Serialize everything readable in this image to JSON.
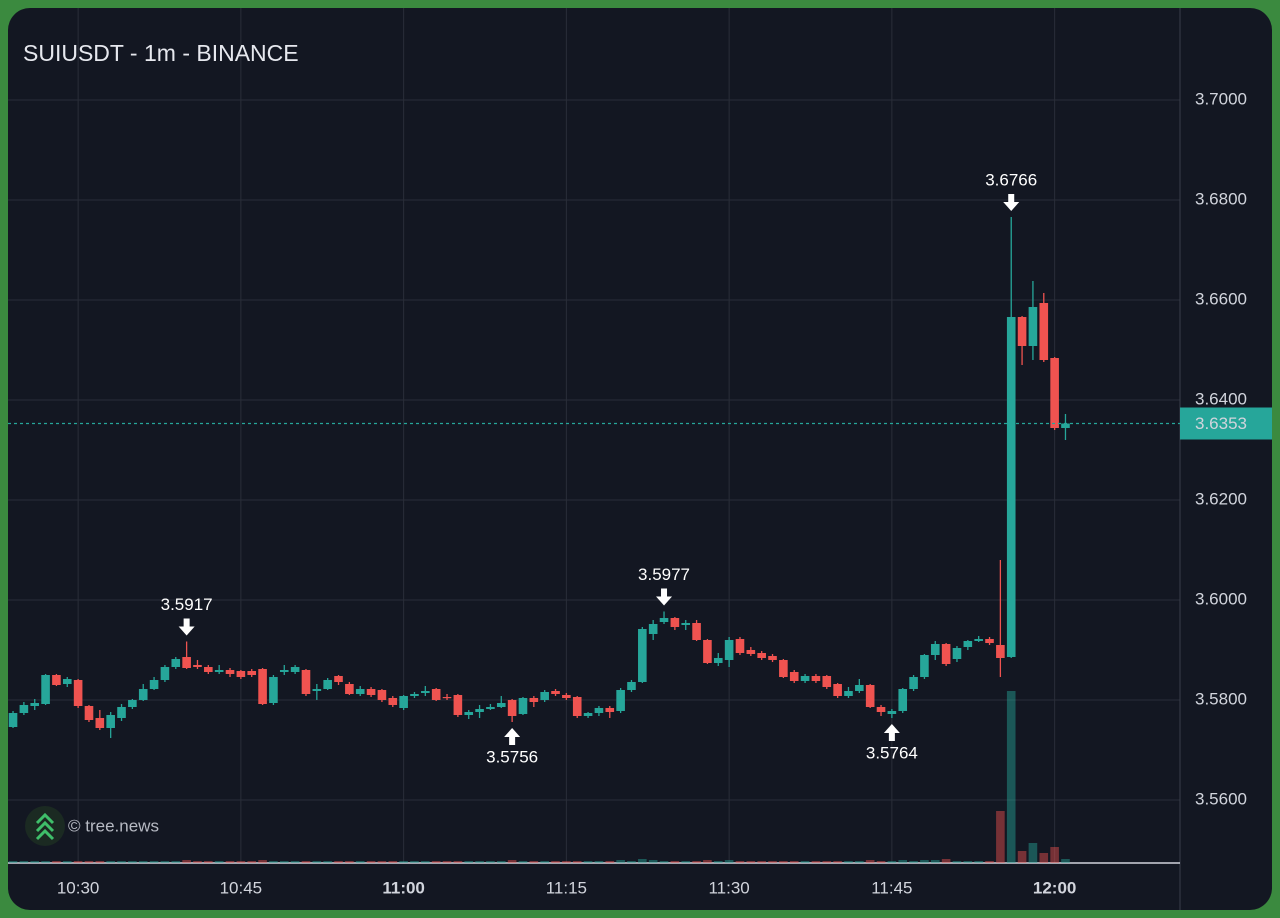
{
  "chart_data": {
    "type": "candlestick",
    "title": "SUIUSDT - 1m - BINANCE",
    "watermark": "© tree.news",
    "categories": [
      "10:24",
      "10:25",
      "10:26",
      "10:27",
      "10:28",
      "10:29",
      "10:30",
      "10:31",
      "10:32",
      "10:33",
      "10:34",
      "10:35",
      "10:36",
      "10:37",
      "10:38",
      "10:39",
      "10:40",
      "10:41",
      "10:42",
      "10:43",
      "10:44",
      "10:45",
      "10:46",
      "10:47",
      "10:48",
      "10:49",
      "10:50",
      "10:51",
      "10:52",
      "10:53",
      "10:54",
      "10:55",
      "10:56",
      "10:57",
      "10:58",
      "10:59",
      "11:00",
      "11:01",
      "11:02",
      "11:03",
      "11:04",
      "11:05",
      "11:06",
      "11:07",
      "11:08",
      "11:09",
      "11:10",
      "11:11",
      "11:12",
      "11:13",
      "11:14",
      "11:15",
      "11:16",
      "11:17",
      "11:18",
      "11:19",
      "11:20",
      "11:21",
      "11:22",
      "11:23",
      "11:24",
      "11:25",
      "11:26",
      "11:27",
      "11:28",
      "11:29",
      "11:30",
      "11:31",
      "11:32",
      "11:33",
      "11:34",
      "11:35",
      "11:36",
      "11:37",
      "11:38",
      "11:39",
      "11:40",
      "11:41",
      "11:42",
      "11:43",
      "11:44",
      "11:45",
      "11:46",
      "11:47",
      "11:48",
      "11:49",
      "11:50",
      "11:51",
      "11:52",
      "11:53",
      "11:54",
      "11:55",
      "11:56",
      "11:57",
      "11:58",
      "11:59",
      "12:00",
      "12:01"
    ],
    "open": [
      3.5746,
      3.5774,
      3.5788,
      3.5792,
      3.585,
      3.5832,
      3.584,
      3.5788,
      3.5764,
      3.5744,
      3.5764,
      3.5786,
      3.58,
      3.5822,
      3.584,
      3.5866,
      3.5886,
      3.587,
      3.5866,
      3.5856,
      3.586,
      3.5858,
      3.5858,
      3.5862,
      3.5794,
      3.5856,
      3.5856,
      3.586,
      3.5818,
      3.5822,
      3.5848,
      3.5832,
      3.5812,
      3.5822,
      3.582,
      3.5804,
      3.5784,
      3.5808,
      3.5814,
      3.5822,
      3.5806,
      3.581,
      3.577,
      3.5776,
      3.5782,
      3.5786,
      3.58,
      3.5772,
      3.5804,
      3.58,
      3.5818,
      3.581,
      3.5806,
      3.5768,
      3.5774,
      3.5784,
      3.5778,
      3.582,
      3.5836,
      3.5932,
      3.5956,
      3.5964,
      3.595,
      3.5954,
      3.592,
      3.5874,
      3.588,
      3.5922,
      3.59,
      3.5894,
      3.5888,
      3.588,
      3.5856,
      3.5838,
      3.5848,
      3.5848,
      3.5832,
      3.5808,
      3.5818,
      3.583,
      3.5786,
      3.5772,
      3.5778,
      3.5822,
      3.5846,
      3.589,
      3.5912,
      3.5882,
      3.5906,
      3.5918,
      3.5922,
      3.591,
      3.5886,
      3.6566,
      3.6508,
      3.6594,
      3.6484,
      3.6344
    ],
    "high": [
      3.5778,
      3.5796,
      3.5802,
      3.5852,
      3.5852,
      3.5846,
      3.5842,
      3.579,
      3.578,
      3.5776,
      3.5792,
      3.5802,
      3.5832,
      3.5846,
      3.587,
      3.5886,
      3.5917,
      3.588,
      3.587,
      3.587,
      3.5864,
      3.586,
      3.5862,
      3.5864,
      3.585,
      3.587,
      3.587,
      3.5862,
      3.5832,
      3.5844,
      3.585,
      3.5836,
      3.5828,
      3.5826,
      3.5822,
      3.5808,
      3.581,
      3.5816,
      3.5828,
      3.5824,
      3.5812,
      3.5812,
      3.578,
      3.579,
      3.5792,
      3.5808,
      3.5802,
      3.5806,
      3.5808,
      3.582,
      3.5822,
      3.5814,
      3.5808,
      3.5776,
      3.5788,
      3.5788,
      3.5824,
      3.584,
      3.5946,
      3.596,
      3.5977,
      3.5966,
      3.596,
      3.596,
      3.5922,
      3.5894,
      3.5926,
      3.5926,
      3.5906,
      3.5898,
      3.5892,
      3.5882,
      3.586,
      3.5852,
      3.5852,
      3.585,
      3.5834,
      3.5826,
      3.5842,
      3.5832,
      3.579,
      3.5782,
      3.5824,
      3.585,
      3.5892,
      3.5918,
      3.5914,
      3.5908,
      3.592,
      3.5928,
      3.5926,
      3.608,
      3.6766,
      3.6568,
      3.6638,
      3.6614,
      3.6486,
      3.6372
    ],
    "low": [
      3.5744,
      3.577,
      3.578,
      3.579,
      3.5828,
      3.5826,
      3.5784,
      3.5756,
      3.574,
      3.5724,
      3.5758,
      3.5782,
      3.5798,
      3.582,
      3.5836,
      3.5862,
      3.5862,
      3.5862,
      3.5852,
      3.5852,
      3.5846,
      3.5842,
      3.5846,
      3.579,
      3.579,
      3.585,
      3.5852,
      3.5808,
      3.58,
      3.582,
      3.583,
      3.581,
      3.5808,
      3.5806,
      3.5796,
      3.5786,
      3.578,
      3.5804,
      3.5808,
      3.5798,
      3.58,
      3.5766,
      3.5762,
      3.5764,
      3.578,
      3.5784,
      3.5756,
      3.577,
      3.5786,
      3.5796,
      3.5808,
      3.58,
      3.5764,
      3.5764,
      3.5768,
      3.5764,
      3.5774,
      3.5816,
      3.5834,
      3.592,
      3.5952,
      3.594,
      3.594,
      3.5918,
      3.5872,
      3.5868,
      3.5866,
      3.589,
      3.5888,
      3.588,
      3.5876,
      3.5844,
      3.5834,
      3.5834,
      3.5834,
      3.5822,
      3.5804,
      3.5804,
      3.5814,
      3.5784,
      3.5768,
      3.5764,
      3.5774,
      3.5818,
      3.5842,
      3.588,
      3.5868,
      3.5876,
      3.59,
      3.5916,
      3.591,
      3.5846,
      3.5884,
      3.647,
      3.648,
      3.6476,
      3.634,
      3.632
    ],
    "close": [
      3.5774,
      3.579,
      3.5794,
      3.585,
      3.583,
      3.5842,
      3.5788,
      3.576,
      3.5744,
      3.577,
      3.5786,
      3.58,
      3.5822,
      3.584,
      3.5866,
      3.5882,
      3.5864,
      3.5866,
      3.5856,
      3.586,
      3.5852,
      3.5846,
      3.585,
      3.5792,
      3.5846,
      3.586,
      3.5866,
      3.5812,
      3.5822,
      3.584,
      3.5836,
      3.5812,
      3.5822,
      3.581,
      3.58,
      3.579,
      3.5808,
      3.5812,
      3.5818,
      3.58,
      3.5804,
      3.577,
      3.5776,
      3.5782,
      3.5786,
      3.5794,
      3.5768,
      3.5804,
      3.5796,
      3.5816,
      3.5812,
      3.5804,
      3.5768,
      3.5774,
      3.5784,
      3.5776,
      3.582,
      3.5836,
      3.5942,
      3.5952,
      3.5964,
      3.5946,
      3.5954,
      3.592,
      3.5874,
      3.5884,
      3.592,
      3.5894,
      3.5892,
      3.5884,
      3.588,
      3.5846,
      3.5838,
      3.5848,
      3.5838,
      3.5826,
      3.5808,
      3.5818,
      3.583,
      3.5786,
      3.5776,
      3.5778,
      3.5822,
      3.5846,
      3.589,
      3.5912,
      3.5872,
      3.5904,
      3.5918,
      3.5922,
      3.5914,
      3.5884,
      3.6566,
      3.6508,
      3.6586,
      3.648,
      3.6344,
      3.6353
    ],
    "volume": [
      2,
      2,
      2,
      2,
      2,
      2,
      2,
      2,
      2,
      2,
      2,
      2,
      2,
      2,
      2,
      2,
      3,
      2,
      2,
      2,
      2,
      2,
      2,
      3,
      2,
      2,
      2,
      2,
      2,
      2,
      2,
      2,
      2,
      2,
      2,
      2,
      2,
      2,
      2,
      2,
      2,
      2,
      2,
      2,
      2,
      2,
      3,
      2,
      2,
      2,
      2,
      2,
      2,
      2,
      2,
      2,
      3,
      2,
      4,
      3,
      2,
      2,
      2,
      2,
      3,
      2,
      3,
      2,
      2,
      2,
      2,
      2,
      2,
      2,
      2,
      2,
      2,
      2,
      2,
      3,
      2,
      2,
      3,
      2,
      3,
      3,
      4,
      2,
      2,
      2,
      2,
      52,
      172,
      12,
      20,
      10,
      16,
      4
    ],
    "up_color": "#26a69a",
    "down_color": "#ef5350",
    "ylim": [
      3.5474,
      3.7184
    ],
    "yticks": [
      {
        "value": 3.56,
        "label": "3.5600"
      },
      {
        "value": 3.58,
        "label": "3.5800"
      },
      {
        "value": 3.6,
        "label": "3.6000"
      },
      {
        "value": 3.62,
        "label": "3.6200"
      },
      {
        "value": 3.64,
        "label": "3.6400"
      },
      {
        "value": 3.66,
        "label": "3.6600"
      },
      {
        "value": 3.68,
        "label": "3.6800"
      },
      {
        "value": 3.7,
        "label": "3.7000"
      }
    ],
    "grid": true
  }
}
